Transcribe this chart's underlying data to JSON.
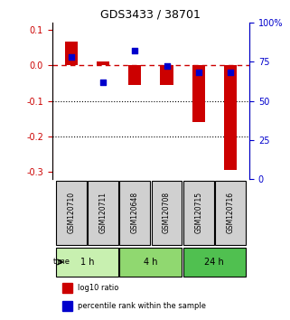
{
  "title": "GDS3433 / 38701",
  "samples": [
    "GSM120710",
    "GSM120711",
    "GSM120648",
    "GSM120708",
    "GSM120715",
    "GSM120716"
  ],
  "log10_ratio": [
    0.065,
    0.01,
    -0.055,
    -0.055,
    -0.16,
    -0.295
  ],
  "percentile_rank": [
    78,
    62,
    82,
    72,
    68,
    68
  ],
  "time_groups": [
    {
      "label": "1 h",
      "start": 0,
      "end": 2,
      "color": "#c8f0b0"
    },
    {
      "label": "4 h",
      "start": 2,
      "end": 4,
      "color": "#90d870"
    },
    {
      "label": "24 h",
      "start": 4,
      "end": 6,
      "color": "#50c050"
    }
  ],
  "ylim_left": [
    -0.32,
    0.12
  ],
  "ylim_right": [
    0,
    100
  ],
  "bar_color": "#cc0000",
  "scatter_color": "#0000cc",
  "zero_line_color": "#cc0000",
  "dotted_line_color": "#000000",
  "yticks_left": [
    0.1,
    0.0,
    -0.1,
    -0.2,
    -0.3
  ],
  "yticks_right": [
    100,
    75,
    50,
    25,
    0
  ],
  "yticks_right_labels": [
    "100%",
    "75",
    "50",
    "25",
    "0"
  ],
  "sample_box_color": "#d0d0d0",
  "bar_width": 0.4
}
